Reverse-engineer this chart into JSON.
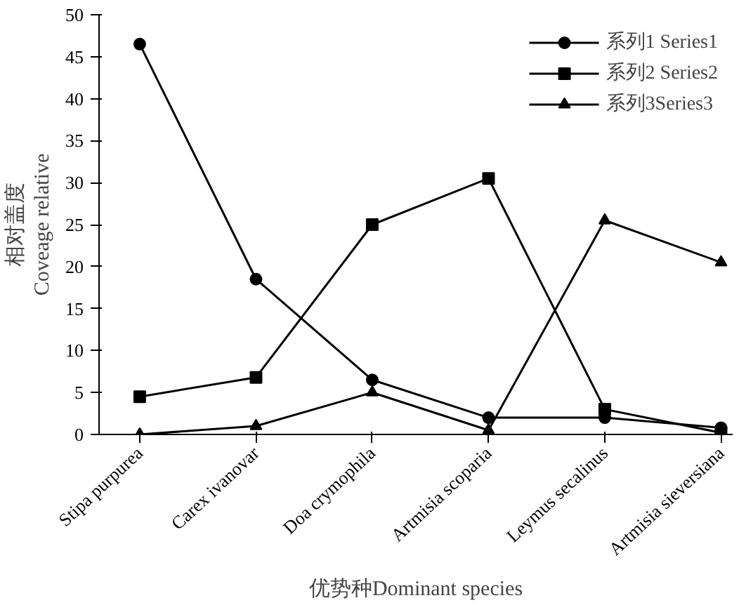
{
  "chart_data": {
    "type": "line",
    "xlabel": "优势种Dominant species",
    "ylabel": "相对盖度\nCoveage relative",
    "categories": [
      "Stipa purpurea",
      "Carex ivanovar",
      "Doa crymophila",
      "Artmisia scoparia",
      "Leymus secalinus",
      "Artmisia sieversiana"
    ],
    "series": [
      {
        "name": "系列1 Series1",
        "color": "#000000",
        "marker": "circle",
        "values": [
          46.5,
          18.5,
          6.5,
          2,
          2,
          0.8
        ]
      },
      {
        "name": "系列2 Series2",
        "color": "#000000",
        "marker": "square",
        "values": [
          4.5,
          6.8,
          25,
          30.5,
          3,
          0.2
        ]
      },
      {
        "name": "系列3Series3",
        "color": "#000000",
        "marker": "triangle",
        "values": [
          0,
          1,
          5,
          0.5,
          25.5,
          20.5
        ]
      }
    ],
    "ylim": [
      0,
      50
    ],
    "yticks": [
      0,
      5,
      10,
      15,
      20,
      25,
      30,
      35,
      40,
      45,
      50
    ],
    "grid": false,
    "legend": "top right",
    "line_style": "solid"
  }
}
